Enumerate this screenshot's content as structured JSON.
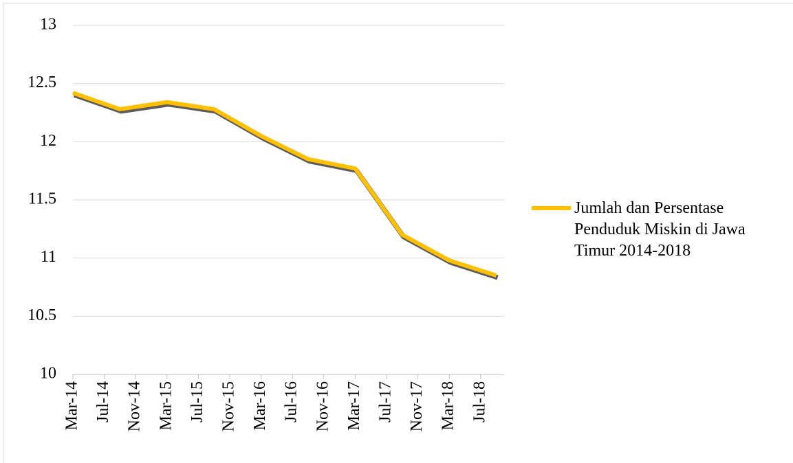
{
  "chart_data": {
    "type": "line",
    "x": [
      "Mar-14",
      "Sep-14",
      "Mar-15",
      "Sep-15",
      "Mar-16",
      "Sep-16",
      "Mar-17",
      "Sep-17",
      "Mar-18",
      "Sep-18"
    ],
    "series": [
      {
        "name": "Jumlah dan Persentase Penduduk Miskin di Jawa Timur 2014-2018",
        "color": "#ffc000",
        "values": [
          12.42,
          12.28,
          12.34,
          12.28,
          12.05,
          11.85,
          11.77,
          11.2,
          10.98,
          10.85
        ]
      }
    ],
    "xlim": [
      "Mar-14",
      "Oct-18"
    ],
    "xticks": [
      "Mar-14",
      "Jul-14",
      "Nov-14",
      "Mar-15",
      "Jul-15",
      "Nov-15",
      "Mar-16",
      "Jul-16",
      "Nov-16",
      "Mar-17",
      "Jul-17",
      "Nov-17",
      "Mar-18",
      "Jul-18"
    ],
    "ylim": [
      10,
      13
    ],
    "yticks": [
      10,
      10.5,
      11,
      11.5,
      12,
      12.5,
      13
    ],
    "grid": true,
    "legend": "right"
  }
}
